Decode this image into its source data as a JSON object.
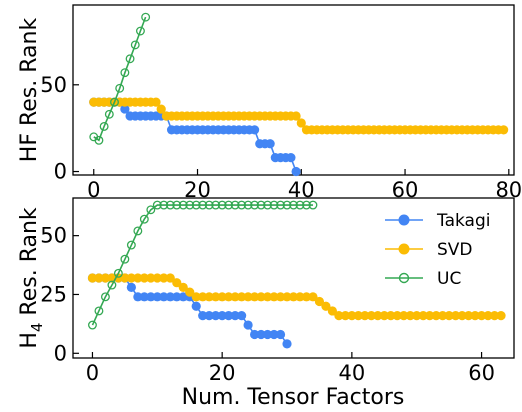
{
  "chart_data": [
    {
      "id": "hf",
      "type": "line",
      "ylabel": "HF Res. Rank",
      "xlabel": "",
      "xlim": [
        -4,
        81
      ],
      "ylim": [
        -2,
        96
      ],
      "xticks": [
        0,
        20,
        40,
        60,
        80
      ],
      "yticks": [
        0,
        50
      ],
      "grid": false,
      "series": [
        {
          "name": "Takagi",
          "marker": "filled",
          "color": "#4285f4",
          "x": [
            0,
            1,
            2,
            3,
            4,
            5,
            6,
            7,
            8,
            9,
            10,
            11,
            12,
            13,
            14,
            15,
            16,
            17,
            18,
            19,
            20,
            21,
            22,
            23,
            24,
            25,
            26,
            27,
            28,
            29,
            30,
            31,
            32,
            33,
            34,
            35,
            36,
            37,
            38,
            39
          ],
          "y": [
            40,
            40,
            40,
            40,
            40,
            40,
            36,
            32,
            32,
            32,
            32,
            32,
            32,
            32,
            32,
            24,
            24,
            24,
            24,
            24,
            24,
            24,
            24,
            24,
            24,
            24,
            24,
            24,
            24,
            24,
            24,
            24,
            16,
            16,
            16,
            8,
            8,
            8,
            8,
            0
          ]
        },
        {
          "name": "SVD",
          "marker": "filled",
          "color": "#fbbc04",
          "x": [
            0,
            1,
            2,
            3,
            4,
            5,
            6,
            7,
            8,
            9,
            10,
            11,
            12,
            13,
            14,
            15,
            16,
            17,
            18,
            19,
            20,
            21,
            22,
            23,
            24,
            25,
            26,
            27,
            28,
            29,
            30,
            31,
            32,
            33,
            34,
            35,
            36,
            37,
            38,
            39,
            40,
            41,
            42,
            43,
            44,
            45,
            46,
            47,
            48,
            49,
            50,
            51,
            52,
            53,
            54,
            55,
            56,
            57,
            58,
            59,
            60,
            61,
            62,
            63,
            64,
            65,
            66,
            67,
            68,
            69,
            70,
            71,
            72,
            73,
            74,
            75,
            76,
            77,
            78,
            79
          ],
          "y": [
            40,
            40,
            40,
            40,
            40,
            40,
            40,
            40,
            40,
            40,
            40,
            40,
            40,
            36,
            32,
            32,
            32,
            32,
            32,
            32,
            32,
            32,
            32,
            32,
            32,
            32,
            32,
            32,
            32,
            32,
            32,
            32,
            32,
            32,
            32,
            32,
            32,
            32,
            32,
            32,
            28,
            24,
            24,
            24,
            24,
            24,
            24,
            24,
            24,
            24,
            24,
            24,
            24,
            24,
            24,
            24,
            24,
            24,
            24,
            24,
            24,
            24,
            24,
            24,
            24,
            24,
            24,
            24,
            24,
            24,
            24,
            24,
            24,
            24,
            24,
            24,
            24,
            24,
            24,
            24
          ]
        },
        {
          "name": "UC",
          "marker": "open",
          "color": "#34a853",
          "x": [
            0,
            1,
            2,
            3,
            4,
            5,
            6,
            7,
            8,
            9,
            10
          ],
          "y": [
            20,
            18,
            26,
            33,
            40,
            48,
            57,
            65,
            73,
            81,
            89
          ]
        }
      ]
    },
    {
      "id": "h4",
      "type": "line",
      "ylabel_main": "H",
      "ylabel_sub": "4",
      "ylabel_rest": " Res. Rank",
      "xlabel": "Num. Tensor Factors",
      "xlim": [
        -3,
        65
      ],
      "ylim": [
        -2,
        66
      ],
      "xticks": [
        0,
        20,
        40,
        60
      ],
      "yticks": [
        0,
        25,
        50
      ],
      "grid": false,
      "legend_position": "top-right",
      "series": [
        {
          "name": "Takagi",
          "marker": "filled",
          "color": "#4285f4",
          "x": [
            0,
            1,
            2,
            3,
            4,
            5,
            6,
            7,
            8,
            9,
            10,
            11,
            12,
            13,
            14,
            15,
            16,
            17,
            18,
            19,
            20,
            21,
            22,
            23,
            24,
            25,
            26,
            27,
            28,
            29,
            30
          ],
          "y": [
            32,
            32,
            32,
            32,
            32,
            32,
            28,
            24,
            24,
            24,
            24,
            24,
            24,
            24,
            24,
            24,
            20,
            16,
            16,
            16,
            16,
            16,
            16,
            16,
            12,
            8,
            8,
            8,
            8,
            8,
            4
          ]
        },
        {
          "name": "SVD",
          "marker": "filled",
          "color": "#fbbc04",
          "x": [
            0,
            1,
            2,
            3,
            4,
            5,
            6,
            7,
            8,
            9,
            10,
            11,
            12,
            13,
            14,
            15,
            16,
            17,
            18,
            19,
            20,
            21,
            22,
            23,
            24,
            25,
            26,
            27,
            28,
            29,
            30,
            31,
            32,
            33,
            34,
            35,
            36,
            37,
            38,
            39,
            40,
            41,
            42,
            43,
            44,
            45,
            46,
            47,
            48,
            49,
            50,
            51,
            52,
            53,
            54,
            55,
            56,
            57,
            58,
            59,
            60,
            61,
            62,
            63
          ],
          "y": [
            32,
            32,
            32,
            32,
            32,
            32,
            32,
            32,
            32,
            32,
            32,
            32,
            32,
            30,
            28,
            26,
            24,
            24,
            24,
            24,
            24,
            24,
            24,
            24,
            24,
            24,
            24,
            24,
            24,
            24,
            24,
            24,
            24,
            24,
            24,
            22,
            20,
            18,
            16,
            16,
            16,
            16,
            16,
            16,
            16,
            16,
            16,
            16,
            16,
            16,
            16,
            16,
            16,
            16,
            16,
            16,
            16,
            16,
            16,
            16,
            16,
            16,
            16,
            16
          ]
        },
        {
          "name": "UC",
          "marker": "open",
          "color": "#34a853",
          "x": [
            0,
            1,
            2,
            3,
            4,
            5,
            6,
            7,
            8,
            9,
            10,
            11,
            12,
            13,
            14,
            15,
            16,
            17,
            18,
            19,
            20,
            21,
            22,
            23,
            24,
            25,
            26,
            27,
            28,
            29,
            30,
            31,
            32,
            33,
            34
          ],
          "y": [
            12,
            18,
            24,
            29,
            34,
            40,
            46,
            52,
            57,
            61,
            63,
            63,
            63,
            63,
            63,
            63,
            63,
            63,
            63,
            63,
            63,
            63,
            63,
            63,
            63,
            63,
            63,
            63,
            63,
            63,
            63,
            63,
            63,
            63,
            63
          ]
        }
      ]
    }
  ]
}
